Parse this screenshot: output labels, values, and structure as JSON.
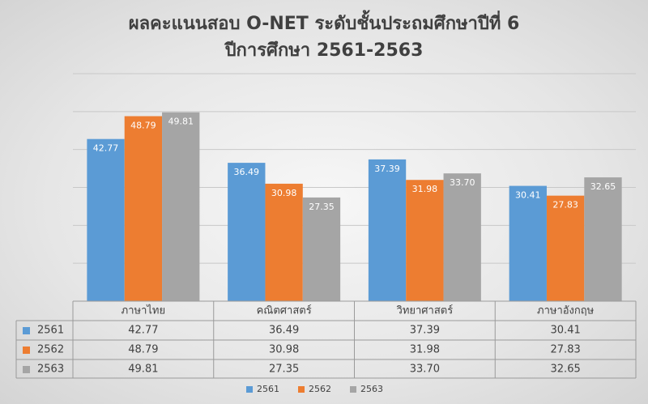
{
  "chart_data": {
    "type": "bar",
    "title": "ผลคะแนนสอบ O-NET ระดับชั้นประถมศึกษาปีที่ 6",
    "subtitle": "ปีการศึกษา 2561-2563",
    "categories": [
      "ภาษาไทย",
      "คณิตศาสตร์",
      "วิทยาศาสตร์",
      "ภาษาอังกฤษ"
    ],
    "series": [
      {
        "name": "2561",
        "color": "#5b9bd5",
        "values": [
          42.77,
          36.49,
          37.39,
          30.41
        ],
        "value_labels": [
          "42.77",
          "36.49",
          "37.39",
          "30.41"
        ]
      },
      {
        "name": "2562",
        "color": "#ed7d31",
        "values": [
          48.79,
          30.98,
          31.98,
          27.83
        ],
        "value_labels": [
          "48.79",
          "30.98",
          "31.98",
          "27.83"
        ]
      },
      {
        "name": "2563",
        "color": "#a5a5a5",
        "values": [
          49.81,
          27.35,
          33.7,
          32.65
        ],
        "value_labels": [
          "49.81",
          "27.35",
          "33.70",
          "32.65"
        ]
      }
    ],
    "ylim": [
      0,
      60
    ],
    "yticks": [
      0,
      10,
      20,
      30,
      40,
      50,
      60
    ],
    "grid": true,
    "data_table": true,
    "legend": "bottom"
  }
}
